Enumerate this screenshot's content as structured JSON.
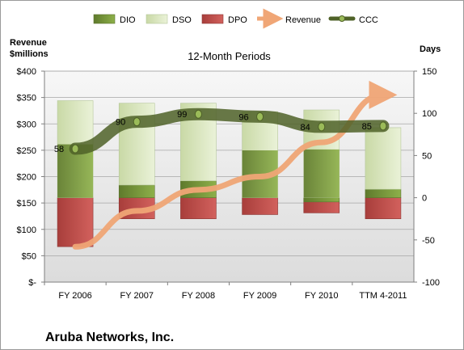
{
  "chart_data": {
    "type": "bar",
    "title": "12-Month Periods",
    "company": "Aruba Networks, Inc.",
    "ylabel_left": "Revenue\n$millions",
    "ylabel_right": "Days",
    "categories": [
      "FY 2006",
      "FY 2007",
      "FY 2008",
      "FY 2009",
      "FY 2010",
      "TTM 4-2011"
    ],
    "y_left": {
      "ticks": [
        "$-",
        "$50",
        "$100",
        "$150",
        "$200",
        "$250",
        "$300",
        "$350",
        "$400"
      ],
      "lim": [
        0,
        400
      ]
    },
    "y_right": {
      "ticks": [
        "-100",
        "-50",
        "0",
        "50",
        "100",
        "150"
      ],
      "lim": [
        -100,
        150
      ]
    },
    "legend": {
      "placement": "top",
      "items": [
        "DIO",
        "DSO",
        "DPO",
        "Revenue",
        "CCC"
      ]
    },
    "series": [
      {
        "name": "DIO",
        "axis": "right",
        "kind": "stacked-bar",
        "values": [
          0,
          15,
          20,
          0,
          -5,
          10
        ]
      },
      {
        "name": "DSO",
        "axis": "right",
        "kind": "stacked-bar",
        "values": [
          115,
          97,
          92,
          102,
          104,
          73
        ]
      },
      {
        "name": "DPO",
        "axis": "right",
        "kind": "negative-bar",
        "values": [
          -58,
          -25,
          -25,
          -20,
          -18,
          -25
        ]
      },
      {
        "name": "Revenue",
        "axis": "left",
        "kind": "arrow-line",
        "values": [
          67,
          135,
          175,
          200,
          265,
          355
        ]
      },
      {
        "name": "CCC",
        "axis": "right",
        "kind": "line",
        "values": [
          58,
          90,
          99,
          96,
          84,
          85
        ],
        "labels": [
          "58",
          "90",
          "99",
          "96",
          "84",
          "85"
        ]
      }
    ],
    "colors": {
      "DIO": "#77933c",
      "DSO": "#d7e4bd",
      "DPO": "#c0504d",
      "Revenue": "#f0a676",
      "CCC": "#4f6228",
      "plot_bg": "#dcdcdc"
    },
    "grid": true
  }
}
